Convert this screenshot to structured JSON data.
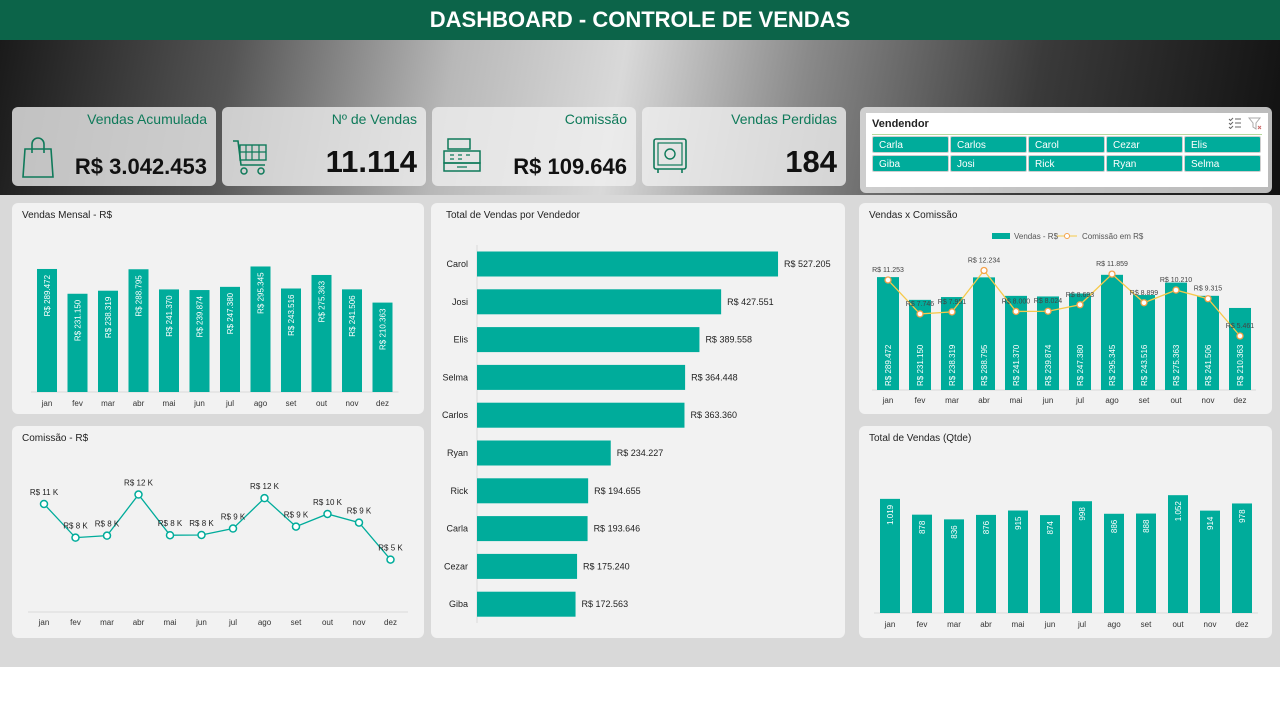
{
  "header": {
    "title": "DASHBOARD - CONTROLE DE VENDAS"
  },
  "kpis": [
    {
      "title": "Vendas Acumulada",
      "value": "R$ 3.042.453",
      "icon": "shopping-bag-icon"
    },
    {
      "title": "Nº de Vendas",
      "value": "11.114",
      "icon": "shopping-cart-icon"
    },
    {
      "title": "Comissão",
      "value": "R$ 109.646",
      "icon": "cash-register-icon"
    },
    {
      "title": "Vendas Perdidas",
      "value": "184",
      "icon": "safe-icon"
    }
  ],
  "slicer": {
    "title": "Vendendor",
    "items": [
      "Carla",
      "Carlos",
      "Carol",
      "Cezar",
      "Elis",
      "Giba",
      "Josi",
      "Rick",
      "Ryan",
      "Selma"
    ]
  },
  "colors": {
    "teal": "#00ac9b",
    "orange": "#f4a14a",
    "line_yellow": "#f6c94a",
    "header": "#0c6449"
  },
  "chart_data": [
    {
      "id": "vendas_mensal",
      "type": "bar",
      "title": "Vendas Mensal - R$",
      "categories": [
        "jan",
        "fev",
        "mar",
        "abr",
        "mai",
        "jun",
        "jul",
        "ago",
        "set",
        "out",
        "nov",
        "dez"
      ],
      "values": [
        289472,
        231150,
        238319,
        288795,
        241370,
        239874,
        247380,
        295345,
        243516,
        275363,
        241506,
        210363
      ],
      "labels": [
        "R$ 289.472",
        "R$ 231.150",
        "R$ 238.319",
        "R$ 288.795",
        "R$ 241.370",
        "R$ 239.874",
        "R$ 247.380",
        "R$ 295.345",
        "R$ 243.516",
        "R$ 275.363",
        "R$ 241.506",
        "R$ 210.363"
      ]
    },
    {
      "id": "comissao",
      "type": "line",
      "title": "Comissão - R$",
      "categories": [
        "jan",
        "fev",
        "mar",
        "abr",
        "mai",
        "jun",
        "jul",
        "ago",
        "set",
        "out",
        "nov",
        "dez"
      ],
      "values": [
        11253,
        7746,
        7951,
        12234,
        8000,
        8024,
        8693,
        11859,
        8899,
        10210,
        9315,
        5461
      ],
      "labels": [
        "R$ 11 K",
        "R$ 8 K",
        "R$ 8 K",
        "R$ 12 K",
        "R$ 8 K",
        "R$ 8 K",
        "R$ 9 K",
        "R$ 12 K",
        "R$ 9 K",
        "R$ 10 K",
        "R$ 9 K",
        "R$ 5 K"
      ]
    },
    {
      "id": "vendedor",
      "type": "bar",
      "orientation": "horizontal",
      "title": "Total de Vendas por Vendedor",
      "categories": [
        "Carol",
        "Josi",
        "Elis",
        "Selma",
        "Carlos",
        "Ryan",
        "Rick",
        "Carla",
        "Cezar",
        "Giba"
      ],
      "values": [
        527205,
        427551,
        389558,
        364448,
        363360,
        234227,
        194655,
        193646,
        175240,
        172563
      ],
      "labels": [
        "R$ 527.205",
        "R$ 427.551",
        "R$ 389.558",
        "R$ 364.448",
        "R$ 363.360",
        "R$ 234.227",
        "R$ 194.655",
        "R$ 193.646",
        "R$ 175.240",
        "R$ 172.563"
      ]
    },
    {
      "id": "vendas_comissao",
      "type": "bar+line",
      "title": "Vendas x Comissão",
      "legend": [
        "Vendas - R$",
        "Comissão em R$"
      ],
      "legend_position": "top",
      "categories": [
        "jan",
        "fev",
        "mar",
        "abr",
        "mai",
        "jun",
        "jul",
        "ago",
        "set",
        "out",
        "nov",
        "dez"
      ],
      "series": [
        {
          "name": "Vendas - R$",
          "values": [
            289472,
            231150,
            238319,
            288795,
            241370,
            239874,
            247380,
            295345,
            243516,
            275363,
            241506,
            210363
          ],
          "labels": [
            "R$ 289.472",
            "R$ 231.150",
            "R$ 238.319",
            "R$ 288.795",
            "R$ 241.370",
            "R$ 239.874",
            "R$ 247.380",
            "R$ 295.345",
            "R$ 243.516",
            "R$ 275.363",
            "R$ 241.506",
            "R$ 210.363"
          ]
        },
        {
          "name": "Comissão em R$",
          "values": [
            11253,
            7746,
            7951,
            12234,
            8000,
            8024,
            8693,
            11859,
            8899,
            10210,
            9315,
            5461
          ],
          "labels": [
            "R$ 11.253",
            "R$ 7.746",
            "R$ 7.951",
            "R$ 12.234",
            "R$ 8.000",
            "R$ 8.024",
            "R$ 8.693",
            "R$ 11.859",
            "R$ 8.899",
            "R$ 10.210",
            "R$ 9.315",
            "R$ 5.461"
          ]
        }
      ]
    },
    {
      "id": "qtde",
      "type": "bar",
      "title": "Total de Vendas (Qtde)",
      "categories": [
        "jan",
        "fev",
        "mar",
        "abr",
        "mai",
        "jun",
        "jul",
        "ago",
        "set",
        "out",
        "nov",
        "dez"
      ],
      "values": [
        1019,
        878,
        836,
        876,
        915,
        874,
        998,
        886,
        888,
        1052,
        914,
        978
      ],
      "labels": [
        "1.019",
        "878",
        "836",
        "876",
        "915",
        "874",
        "998",
        "886",
        "888",
        "1.052",
        "914",
        "978"
      ]
    }
  ]
}
